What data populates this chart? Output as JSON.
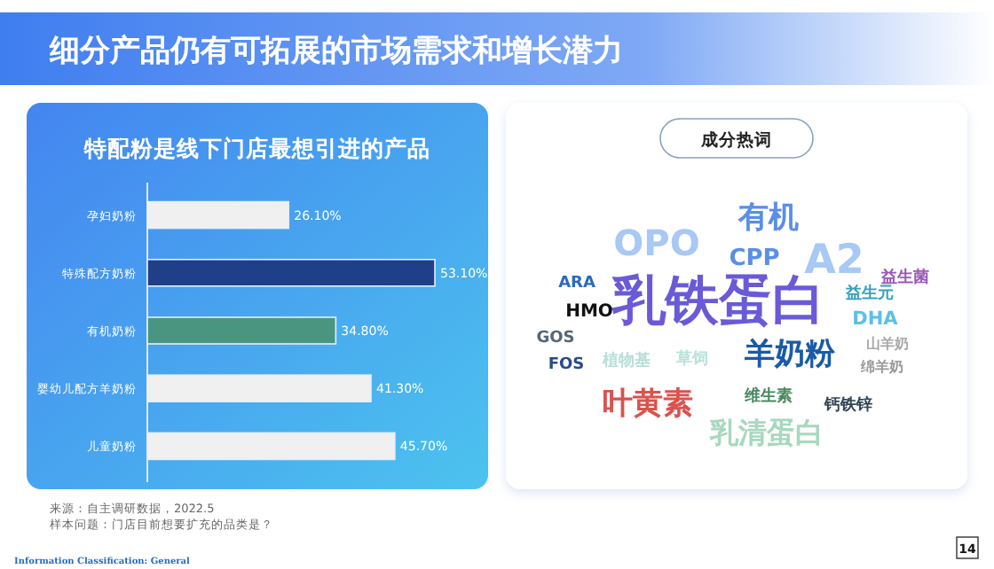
{
  "chart_data": [
    {
      "type": "bar",
      "orientation": "horizontal",
      "title": "特配粉是线下门店最想引进的产品",
      "categories": [
        "孕妇奶粉",
        "特殊配方奶粉",
        "有机奶粉",
        "婴幼儿配方羊奶粉",
        "儿童奶粉"
      ],
      "values": [
        26.1,
        53.1,
        34.8,
        41.3,
        45.7
      ],
      "value_labels": [
        "26.10%",
        "53.10%",
        "34.80%",
        "41.30%",
        "45.70%"
      ],
      "colors": [
        "#f0f0f0",
        "#1f3f88",
        "#4a9580",
        "#f0f0f0",
        "#f0f0f0"
      ],
      "annotations": [
        "细分产品仍有可拓展的市场需求和增长潜力",
        "来源：自主调研数据，2022.5",
        "样本问题：门店目前想要扩充的品类是？",
        "14",
        "Information Classification: General"
      ]
    },
    {
      "type": "other",
      "title": "成分热词",
      "annotations": [
        "有机",
        "OPO",
        "CPP",
        "A2",
        "益生菌",
        "ARA",
        "乳铁蛋白",
        "益生元",
        "HMO",
        "DHA",
        "GOS",
        "山羊奶",
        "植物基",
        "草饲",
        "羊奶粉",
        "FOS",
        "绵羊奶",
        "叶黄素",
        "维生素",
        "钙铁锌",
        "乳清蛋白"
      ]
    }
  ]
}
